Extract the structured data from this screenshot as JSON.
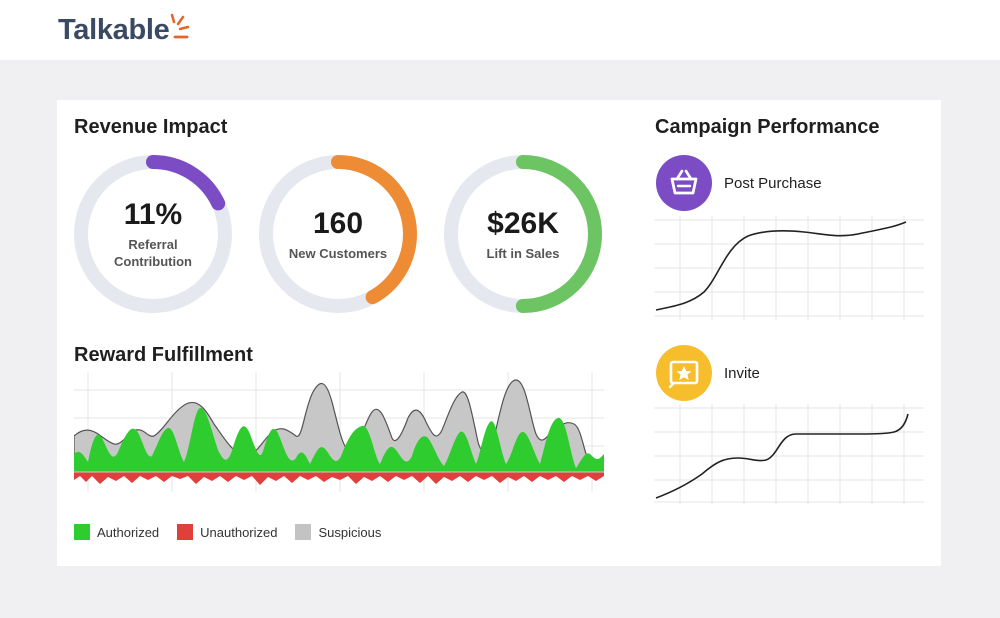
{
  "header": {
    "logo_text": "Talkable",
    "logo_accent": "#e8632b",
    "logo_color": "#3a4a62"
  },
  "revenue": {
    "title": "Revenue Impact",
    "metrics": [
      {
        "value": "11%",
        "label": "Referral\nContribution",
        "fraction": 0.18,
        "color": "#7b4cc4"
      },
      {
        "value": "160",
        "label": "New Customers",
        "fraction": 0.42,
        "color": "#ee8c35"
      },
      {
        "value": "$26K",
        "label": "Lift in Sales",
        "fraction": 0.5,
        "color": "#6cc463"
      }
    ],
    "track_color": "#e6e8f0"
  },
  "reward": {
    "title": "Reward Fulfillment",
    "legend": [
      {
        "label": "Authorized",
        "color": "#2ecc2e"
      },
      {
        "label": "Unauthorized",
        "color": "#e0403c"
      },
      {
        "label": "Suspicious",
        "color": "#c3c3c3"
      }
    ]
  },
  "campaign": {
    "title": "Campaign Performance",
    "items": [
      {
        "label": "Post Purchase",
        "icon": "basket-icon",
        "color": "#7b4cc4"
      },
      {
        "label": "Invite",
        "icon": "star-icon",
        "color": "#f6be2c"
      }
    ]
  }
}
